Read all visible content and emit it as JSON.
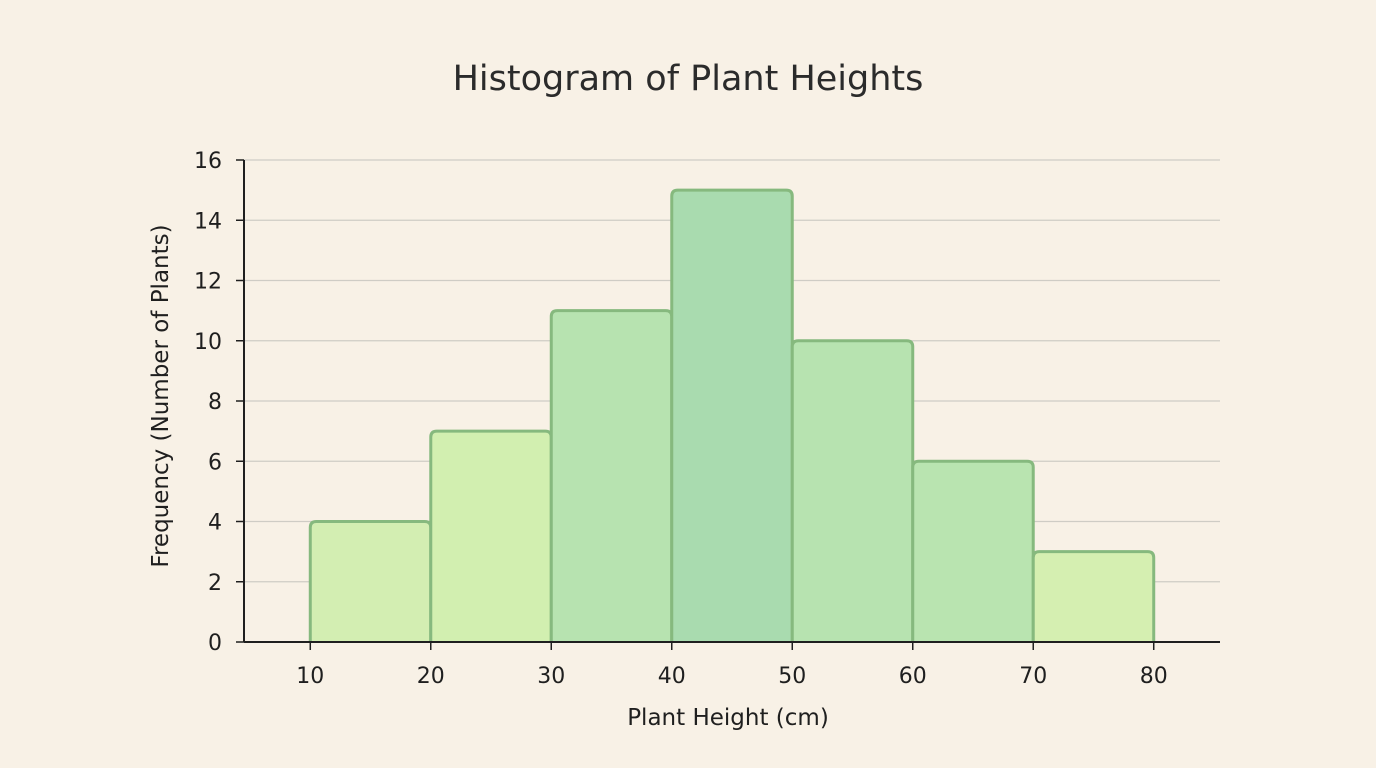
{
  "chart_data": {
    "type": "bar",
    "title": "Histogram of Plant Heights",
    "xlabel": "Plant Height (cm)",
    "ylabel": "Frequency (Number of Plants)",
    "bin_edges": [
      10,
      20,
      30,
      40,
      50,
      60,
      70,
      80
    ],
    "values": [
      4,
      7,
      11,
      15,
      10,
      6,
      3
    ],
    "xlim": [
      4.5,
      85.5
    ],
    "ylim": [
      0,
      16
    ],
    "yticks": [
      0,
      2,
      4,
      6,
      8,
      10,
      12,
      14,
      16
    ],
    "xticks": [
      10,
      20,
      30,
      40,
      50,
      60,
      70,
      80
    ],
    "grid": true,
    "legend": "none",
    "colors": {
      "background": "#f8f1e6",
      "bar_edge": "#86b97e",
      "bar_fills": [
        "#d3eeb2",
        "#d2efb0",
        "#b7e3b0",
        "#a9dbaf",
        "#b7e3b0",
        "#b9e4b0",
        "#d5efb1"
      ]
    }
  }
}
